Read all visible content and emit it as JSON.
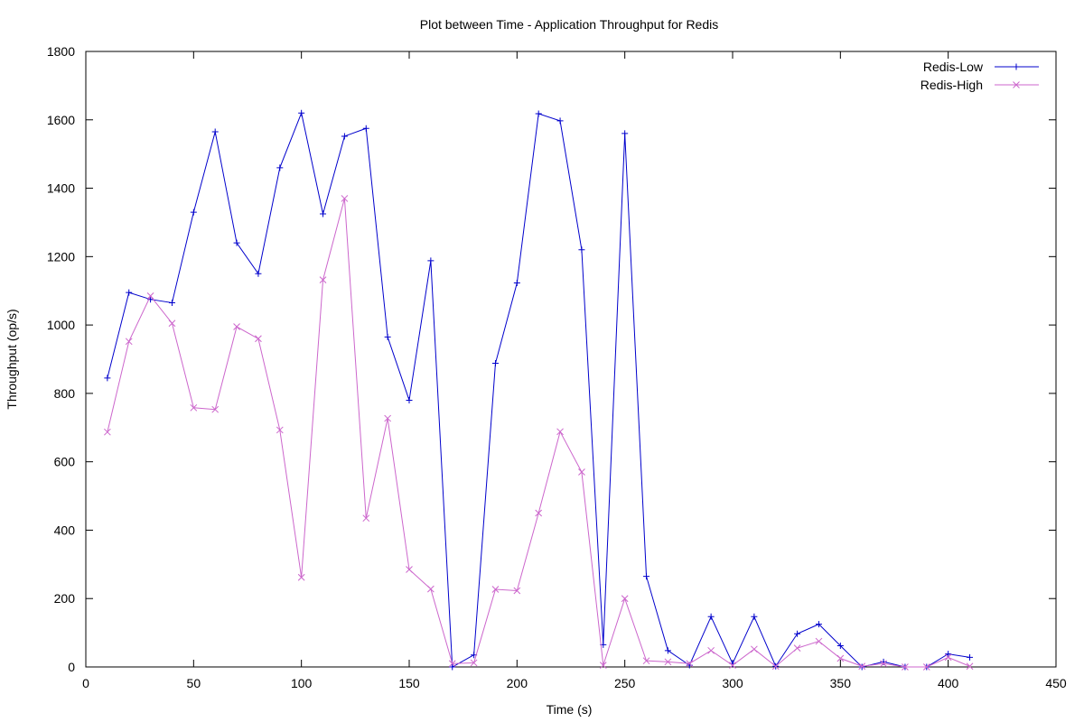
{
  "chart_data": {
    "type": "line",
    "title": "Plot between Time - Application Throughput for Redis",
    "xlabel": "Time (s)",
    "ylabel": "Throughput (op/s)",
    "xlim": [
      0,
      450
    ],
    "ylim": [
      0,
      1800
    ],
    "xticks": [
      0,
      50,
      100,
      150,
      200,
      250,
      300,
      350,
      400,
      450
    ],
    "yticks": [
      0,
      200,
      400,
      600,
      800,
      1000,
      1200,
      1400,
      1600,
      1800
    ],
    "grid": false,
    "legend_position": "top-right",
    "x": [
      10,
      20,
      30,
      40,
      50,
      60,
      70,
      80,
      90,
      100,
      110,
      120,
      130,
      140,
      150,
      160,
      170,
      180,
      190,
      200,
      210,
      220,
      230,
      240,
      250,
      260,
      270,
      280,
      290,
      300,
      310,
      320,
      330,
      340,
      350,
      360,
      370,
      380,
      390,
      400,
      410
    ],
    "series": [
      {
        "name": "Redis-Low",
        "color": "#0000cc",
        "marker": "plus",
        "values": [
          845,
          1095,
          1075,
          1065,
          1330,
          1565,
          1240,
          1150,
          1460,
          1620,
          1325,
          1552,
          1575,
          965,
          780,
          1188,
          0,
          35,
          888,
          1123,
          1618,
          1597,
          1220,
          65,
          1560,
          265,
          48,
          5,
          147,
          10,
          147,
          2,
          97,
          125,
          62,
          0,
          15,
          0,
          0,
          38,
          28
        ]
      },
      {
        "name": "Redis-High",
        "color": "#cc66cc",
        "marker": "cross",
        "values": [
          687,
          952,
          1085,
          1005,
          758,
          753,
          995,
          960,
          693,
          262,
          1132,
          1370,
          435,
          727,
          285,
          228,
          10,
          12,
          227,
          223,
          450,
          688,
          570,
          5,
          200,
          18,
          15,
          10,
          48,
          5,
          52,
          2,
          55,
          75,
          25,
          2,
          10,
          0,
          0,
          28,
          2
        ]
      }
    ]
  }
}
